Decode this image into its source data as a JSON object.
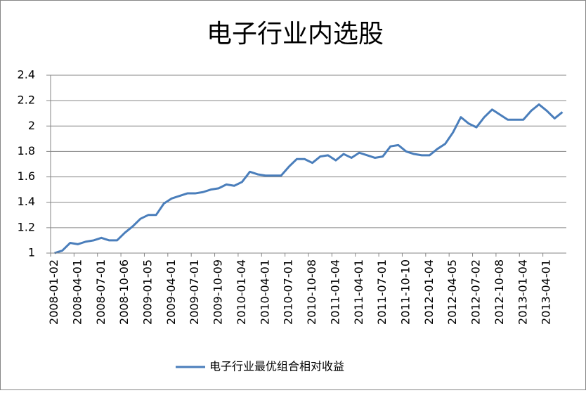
{
  "chart_data": {
    "type": "line",
    "title": "电子行业内选股",
    "categories": [
      "2008-01-02",
      null,
      null,
      "2008-04-01",
      null,
      null,
      "2008-07-01",
      null,
      null,
      "2008-10-06",
      null,
      null,
      "2009-01-05",
      null,
      null,
      "2009-04-01",
      null,
      null,
      "2009-07-01",
      null,
      null,
      "2009-10-09",
      null,
      null,
      "2010-01-04",
      null,
      null,
      "2010-04-01",
      null,
      null,
      "2010-07-01",
      null,
      null,
      "2010-10-08",
      null,
      null,
      "2011-01-04",
      null,
      null,
      "2011-04-01",
      null,
      null,
      "2011-07-01",
      null,
      null,
      "2011-10-10",
      null,
      null,
      "2012-01-04",
      null,
      null,
      "2012-04-05",
      null,
      null,
      "2012-07-02",
      null,
      null,
      "2012-10-08",
      null,
      null,
      "2013-01-04",
      null,
      null,
      "2013-04-01",
      null,
      null
    ],
    "series": [
      {
        "name": "电子行业最优组合相对收益",
        "color": "#4a7ebb",
        "values": [
          1.0,
          1.02,
          1.08,
          1.07,
          1.09,
          1.1,
          1.12,
          1.1,
          1.1,
          1.16,
          1.21,
          1.27,
          1.3,
          1.3,
          1.39,
          1.43,
          1.45,
          1.47,
          1.47,
          1.48,
          1.5,
          1.51,
          1.54,
          1.53,
          1.56,
          1.64,
          1.62,
          1.61,
          1.61,
          1.61,
          1.68,
          1.74,
          1.74,
          1.71,
          1.76,
          1.77,
          1.73,
          1.78,
          1.75,
          1.79,
          1.77,
          1.75,
          1.76,
          1.84,
          1.85,
          1.8,
          1.78,
          1.77,
          1.77,
          1.82,
          1.86,
          1.95,
          2.07,
          2.02,
          1.99,
          2.07,
          2.13,
          2.09,
          2.05,
          2.05,
          2.05,
          2.12,
          2.17,
          2.12,
          2.06,
          2.11
        ]
      }
    ],
    "ylim": [
      1,
      2.4
    ],
    "yticks": [
      1,
      1.2,
      1.4,
      1.6,
      1.8,
      2,
      2.2,
      2.4
    ],
    "grid": true,
    "legend": "bottom"
  }
}
